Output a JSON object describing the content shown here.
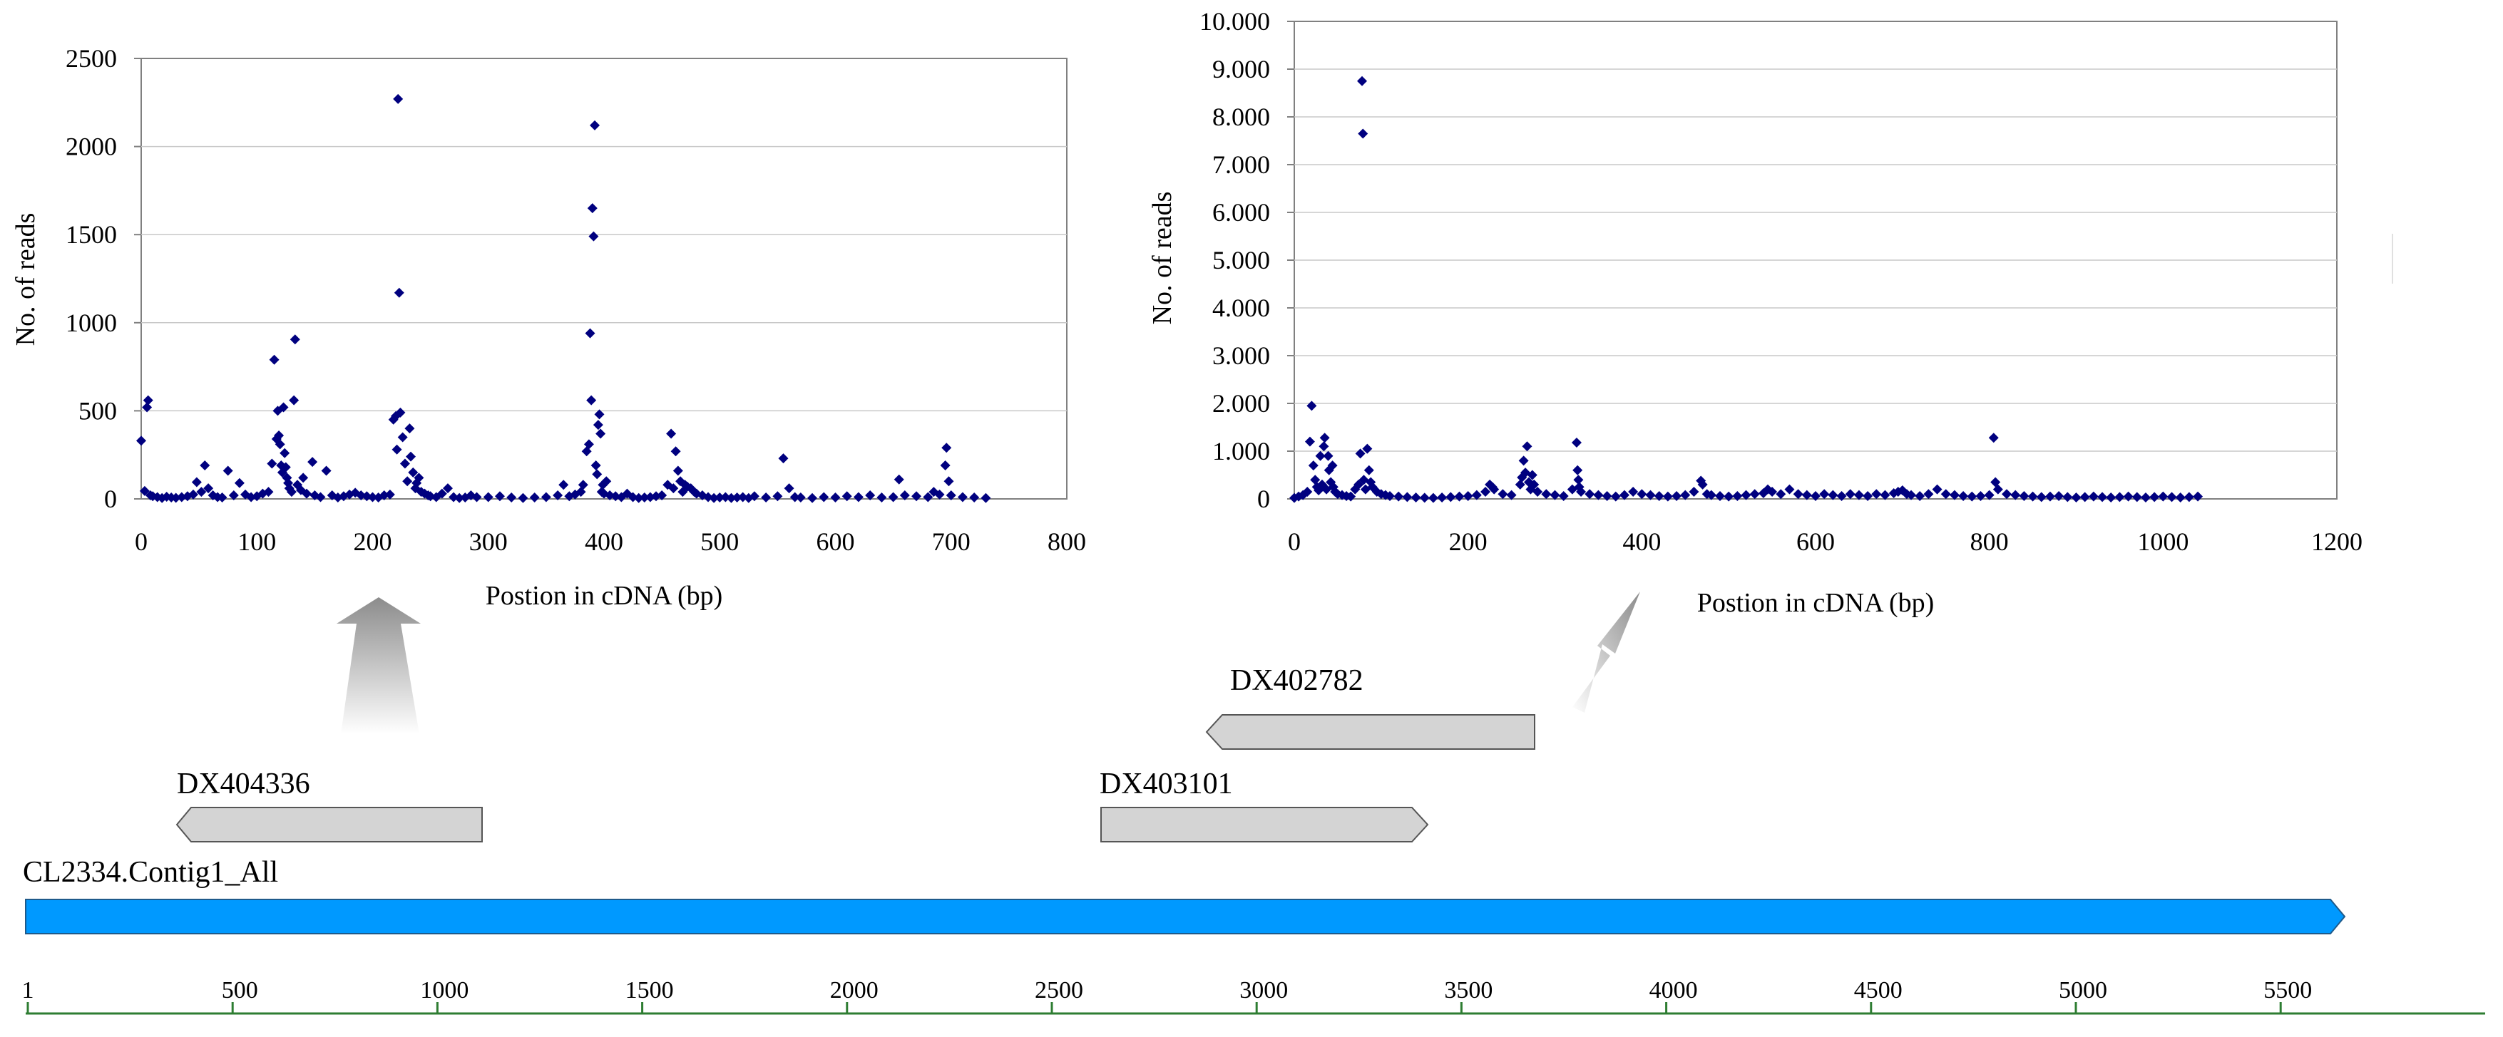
{
  "chart_data": [
    {
      "type": "scatter",
      "xlabel": "Postion in cDNA (bp)",
      "ylabel": "No. of reads",
      "xlim": [
        0,
        800
      ],
      "ylim": [
        0,
        2500
      ],
      "xticks": [
        "0",
        "100",
        "200",
        "300",
        "400",
        "500",
        "600",
        "700",
        "800"
      ],
      "yticks": [
        "0",
        "500",
        "1000",
        "1500",
        "2000",
        "2500"
      ],
      "grid": "horizontal",
      "marker_color": "#00007f",
      "points": [
        [
          0,
          330
        ],
        [
          3,
          45
        ],
        [
          5,
          520
        ],
        [
          6,
          560
        ],
        [
          8,
          20
        ],
        [
          10,
          15
        ],
        [
          14,
          10
        ],
        [
          18,
          5
        ],
        [
          22,
          12
        ],
        [
          26,
          8
        ],
        [
          30,
          6
        ],
        [
          35,
          10
        ],
        [
          40,
          15
        ],
        [
          45,
          25
        ],
        [
          48,
          95
        ],
        [
          52,
          40
        ],
        [
          55,
          190
        ],
        [
          58,
          60
        ],
        [
          62,
          20
        ],
        [
          66,
          10
        ],
        [
          70,
          8
        ],
        [
          75,
          160
        ],
        [
          80,
          20
        ],
        [
          85,
          90
        ],
        [
          90,
          25
        ],
        [
          95,
          10
        ],
        [
          100,
          15
        ],
        [
          105,
          30
        ],
        [
          110,
          40
        ],
        [
          113,
          200
        ],
        [
          115,
          790
        ],
        [
          117,
          340
        ],
        [
          118,
          500
        ],
        [
          119,
          360
        ],
        [
          120,
          310
        ],
        [
          121,
          190
        ],
        [
          122,
          150
        ],
        [
          123,
          520
        ],
        [
          124,
          260
        ],
        [
          125,
          180
        ],
        [
          126,
          120
        ],
        [
          127,
          90
        ],
        [
          128,
          60
        ],
        [
          130,
          40
        ],
        [
          132,
          560
        ],
        [
          133,
          905
        ],
        [
          135,
          80
        ],
        [
          138,
          50
        ],
        [
          140,
          120
        ],
        [
          143,
          30
        ],
        [
          148,
          210
        ],
        [
          150,
          20
        ],
        [
          155,
          10
        ],
        [
          160,
          160
        ],
        [
          165,
          20
        ],
        [
          170,
          8
        ],
        [
          175,
          15
        ],
        [
          180,
          25
        ],
        [
          185,
          35
        ],
        [
          190,
          20
        ],
        [
          195,
          15
        ],
        [
          200,
          10
        ],
        [
          205,
          8
        ],
        [
          210,
          20
        ],
        [
          215,
          25
        ],
        [
          218,
          450
        ],
        [
          220,
          470
        ],
        [
          221,
          280
        ],
        [
          222,
          2270
        ],
        [
          223,
          1170
        ],
        [
          224,
          490
        ],
        [
          226,
          350
        ],
        [
          228,
          200
        ],
        [
          230,
          100
        ],
        [
          232,
          400
        ],
        [
          233,
          240
        ],
        [
          235,
          150
        ],
        [
          237,
          60
        ],
        [
          238,
          90
        ],
        [
          240,
          120
        ],
        [
          242,
          40
        ],
        [
          245,
          30
        ],
        [
          248,
          20
        ],
        [
          250,
          15
        ],
        [
          255,
          10
        ],
        [
          260,
          30
        ],
        [
          265,
          60
        ],
        [
          270,
          10
        ],
        [
          275,
          5
        ],
        [
          280,
          8
        ],
        [
          285,
          20
        ],
        [
          290,
          10
        ],
        [
          300,
          10
        ],
        [
          310,
          15
        ],
        [
          320,
          8
        ],
        [
          330,
          5
        ],
        [
          340,
          8
        ],
        [
          350,
          10
        ],
        [
          360,
          20
        ],
        [
          365,
          80
        ],
        [
          370,
          15
        ],
        [
          375,
          25
        ],
        [
          380,
          40
        ],
        [
          382,
          80
        ],
        [
          385,
          270
        ],
        [
          387,
          310
        ],
        [
          388,
          940
        ],
        [
          389,
          560
        ],
        [
          390,
          1650
        ],
        [
          391,
          1490
        ],
        [
          392,
          2120
        ],
        [
          393,
          190
        ],
        [
          394,
          140
        ],
        [
          395,
          420
        ],
        [
          396,
          480
        ],
        [
          397,
          370
        ],
        [
          398,
          40
        ],
        [
          399,
          80
        ],
        [
          400,
          30
        ],
        [
          402,
          100
        ],
        [
          405,
          20
        ],
        [
          410,
          15
        ],
        [
          415,
          10
        ],
        [
          420,
          30
        ],
        [
          425,
          10
        ],
        [
          430,
          5
        ],
        [
          435,
          8
        ],
        [
          440,
          10
        ],
        [
          445,
          15
        ],
        [
          450,
          20
        ],
        [
          455,
          80
        ],
        [
          458,
          370
        ],
        [
          460,
          60
        ],
        [
          462,
          270
        ],
        [
          464,
          160
        ],
        [
          466,
          100
        ],
        [
          468,
          40
        ],
        [
          470,
          80
        ],
        [
          472,
          70
        ],
        [
          475,
          60
        ],
        [
          478,
          40
        ],
        [
          480,
          30
        ],
        [
          485,
          20
        ],
        [
          490,
          10
        ],
        [
          495,
          5
        ],
        [
          500,
          8
        ],
        [
          505,
          10
        ],
        [
          510,
          5
        ],
        [
          515,
          8
        ],
        [
          520,
          10
        ],
        [
          525,
          5
        ],
        [
          530,
          15
        ],
        [
          540,
          8
        ],
        [
          550,
          15
        ],
        [
          555,
          230
        ],
        [
          560,
          60
        ],
        [
          565,
          10
        ],
        [
          570,
          8
        ],
        [
          580,
          5
        ],
        [
          590,
          10
        ],
        [
          600,
          8
        ],
        [
          610,
          15
        ],
        [
          620,
          10
        ],
        [
          630,
          20
        ],
        [
          640,
          8
        ],
        [
          650,
          10
        ],
        [
          655,
          110
        ],
        [
          660,
          20
        ],
        [
          670,
          15
        ],
        [
          680,
          10
        ],
        [
          685,
          40
        ],
        [
          690,
          25
        ],
        [
          695,
          190
        ],
        [
          696,
          290
        ],
        [
          698,
          100
        ],
        [
          700,
          20
        ],
        [
          710,
          10
        ],
        [
          720,
          8
        ],
        [
          730,
          5
        ]
      ]
    },
    {
      "type": "scatter",
      "xlabel": "Postion in cDNA (bp)",
      "ylabel": "No. of reads",
      "xlim": [
        0,
        1200
      ],
      "ylim": [
        0,
        10000
      ],
      "xticks": [
        "0",
        "200",
        "400",
        "600",
        "800",
        "1000",
        "1200"
      ],
      "yticks": [
        "0",
        "1.000",
        "2.000",
        "3.000",
        "4.000",
        "5.000",
        "6.000",
        "7.000",
        "8.000",
        "9.000",
        "10.000"
      ],
      "grid": "horizontal",
      "marker_color": "#00007f",
      "points": [
        [
          0,
          20
        ],
        [
          5,
          50
        ],
        [
          10,
          80
        ],
        [
          15,
          150
        ],
        [
          18,
          1200
        ],
        [
          20,
          1950
        ],
        [
          22,
          700
        ],
        [
          24,
          400
        ],
        [
          26,
          250
        ],
        [
          28,
          180
        ],
        [
          30,
          900
        ],
        [
          32,
          300
        ],
        [
          34,
          1100
        ],
        [
          35,
          1280
        ],
        [
          37,
          200
        ],
        [
          39,
          900
        ],
        [
          40,
          600
        ],
        [
          42,
          350
        ],
        [
          44,
          700
        ],
        [
          45,
          250
        ],
        [
          47,
          150
        ],
        [
          50,
          100
        ],
        [
          55,
          80
        ],
        [
          60,
          60
        ],
        [
          65,
          50
        ],
        [
          70,
          200
        ],
        [
          74,
          300
        ],
        [
          76,
          950
        ],
        [
          78,
          8750
        ],
        [
          79,
          7650
        ],
        [
          80,
          400
        ],
        [
          82,
          200
        ],
        [
          84,
          1050
        ],
        [
          86,
          600
        ],
        [
          88,
          350
        ],
        [
          90,
          250
        ],
        [
          95,
          150
        ],
        [
          100,
          100
        ],
        [
          105,
          80
        ],
        [
          110,
          60
        ],
        [
          120,
          50
        ],
        [
          130,
          40
        ],
        [
          140,
          30
        ],
        [
          150,
          25
        ],
        [
          160,
          20
        ],
        [
          170,
          30
        ],
        [
          180,
          40
        ],
        [
          190,
          50
        ],
        [
          200,
          60
        ],
        [
          210,
          80
        ],
        [
          220,
          150
        ],
        [
          225,
          300
        ],
        [
          228,
          250
        ],
        [
          230,
          200
        ],
        [
          240,
          100
        ],
        [
          250,
          80
        ],
        [
          260,
          300
        ],
        [
          262,
          450
        ],
        [
          264,
          800
        ],
        [
          266,
          550
        ],
        [
          268,
          1100
        ],
        [
          270,
          350
        ],
        [
          272,
          200
        ],
        [
          274,
          500
        ],
        [
          276,
          300
        ],
        [
          280,
          150
        ],
        [
          290,
          100
        ],
        [
          300,
          80
        ],
        [
          310,
          60
        ],
        [
          320,
          200
        ],
        [
          325,
          1180
        ],
        [
          326,
          600
        ],
        [
          327,
          400
        ],
        [
          328,
          250
        ],
        [
          330,
          150
        ],
        [
          340,
          100
        ],
        [
          350,
          80
        ],
        [
          360,
          60
        ],
        [
          370,
          50
        ],
        [
          380,
          80
        ],
        [
          390,
          150
        ],
        [
          400,
          100
        ],
        [
          410,
          80
        ],
        [
          420,
          60
        ],
        [
          430,
          50
        ],
        [
          440,
          60
        ],
        [
          450,
          80
        ],
        [
          460,
          150
        ],
        [
          468,
          380
        ],
        [
          470,
          300
        ],
        [
          475,
          100
        ],
        [
          480,
          80
        ],
        [
          490,
          60
        ],
        [
          500,
          50
        ],
        [
          510,
          60
        ],
        [
          520,
          80
        ],
        [
          530,
          100
        ],
        [
          540,
          120
        ],
        [
          545,
          200
        ],
        [
          550,
          150
        ],
        [
          560,
          100
        ],
        [
          570,
          200
        ],
        [
          580,
          100
        ],
        [
          590,
          80
        ],
        [
          600,
          60
        ],
        [
          610,
          100
        ],
        [
          620,
          80
        ],
        [
          630,
          60
        ],
        [
          640,
          100
        ],
        [
          650,
          80
        ],
        [
          660,
          60
        ],
        [
          670,
          100
        ],
        [
          680,
          80
        ],
        [
          690,
          120
        ],
        [
          695,
          150
        ],
        [
          700,
          180
        ],
        [
          705,
          100
        ],
        [
          710,
          80
        ],
        [
          720,
          60
        ],
        [
          730,
          100
        ],
        [
          740,
          200
        ],
        [
          750,
          100
        ],
        [
          760,
          80
        ],
        [
          770,
          60
        ],
        [
          780,
          50
        ],
        [
          790,
          60
        ],
        [
          800,
          80
        ],
        [
          805,
          1280
        ],
        [
          807,
          350
        ],
        [
          810,
          200
        ],
        [
          820,
          100
        ],
        [
          830,
          80
        ],
        [
          840,
          60
        ],
        [
          850,
          50
        ],
        [
          860,
          40
        ],
        [
          870,
          50
        ],
        [
          880,
          60
        ],
        [
          890,
          40
        ],
        [
          900,
          30
        ],
        [
          910,
          40
        ],
        [
          920,
          50
        ],
        [
          930,
          40
        ],
        [
          940,
          30
        ],
        [
          950,
          40
        ],
        [
          960,
          50
        ],
        [
          970,
          40
        ],
        [
          980,
          30
        ],
        [
          990,
          40
        ],
        [
          1000,
          50
        ],
        [
          1010,
          40
        ],
        [
          1020,
          30
        ],
        [
          1030,
          40
        ],
        [
          1040,
          50
        ]
      ]
    }
  ],
  "annotations": {
    "contig_label": "CL2334.Contig1_All",
    "gene_labels": [
      "DX404336",
      "DX403101",
      "DX402782"
    ],
    "ruler_ticks": [
      "1",
      "500",
      "1000",
      "1500",
      "2000",
      "2500",
      "3000",
      "3500",
      "4000",
      "4500",
      "5000",
      "5500"
    ],
    "colors": {
      "contig": "#0099ff",
      "gene_fill": "#d4d4d4",
      "gene_stroke": "#555555",
      "ruler": "#2e7d32",
      "arrow": "#9e9e9e"
    }
  }
}
